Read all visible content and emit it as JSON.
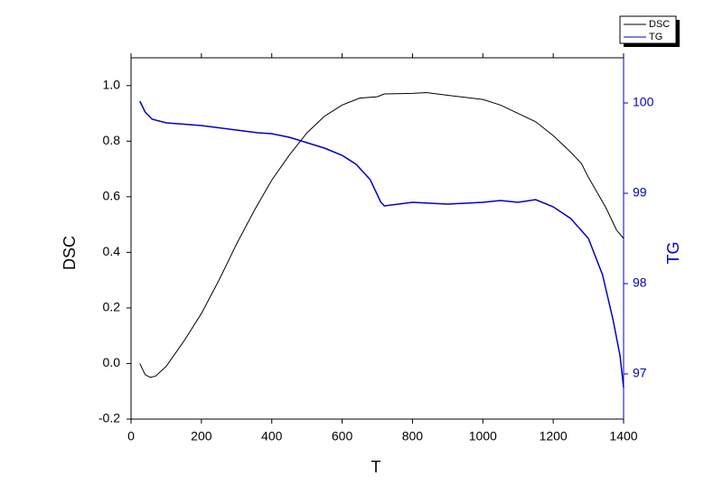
{
  "chart_data": {
    "type": "line",
    "xlabel": "T",
    "ylabel": "DSC",
    "y2label": "TG",
    "xlim": [
      0,
      1400
    ],
    "xticks": [
      0,
      200,
      400,
      600,
      800,
      1000,
      1200,
      1400
    ],
    "ylim": [
      -0.2,
      1.1
    ],
    "yticks": [
      -0.2,
      {
        "value": 0,
        "label": "0.0"
      },
      0.2,
      0.4,
      0.6,
      0.8,
      {
        "value": 1,
        "label": "1.0"
      }
    ],
    "y2lim": [
      96.5,
      100.5
    ],
    "y2ticks": [
      97,
      98,
      99,
      100
    ],
    "legend": "top-right",
    "series": [
      {
        "name": "DSC",
        "color": "#000000",
        "x": [
          25,
          40,
          55,
          70,
          100,
          150,
          200,
          250,
          300,
          350,
          400,
          450,
          500,
          550,
          600,
          650,
          700,
          720,
          800,
          840,
          900,
          1000,
          1050,
          1100,
          1150,
          1200,
          1250,
          1280,
          1300,
          1350,
          1380,
          1400
        ],
        "values": [
          0.0,
          -0.04,
          -0.05,
          -0.045,
          -0.01,
          0.08,
          0.18,
          0.3,
          0.43,
          0.55,
          0.66,
          0.75,
          0.83,
          0.89,
          0.93,
          0.955,
          0.96,
          0.97,
          0.972,
          0.975,
          0.965,
          0.95,
          0.93,
          0.9,
          0.87,
          0.82,
          0.76,
          0.72,
          0.67,
          0.56,
          0.48,
          0.45
        ]
      },
      {
        "name": "TG",
        "color": "#0000cc",
        "axis": "y2",
        "x": [
          25,
          40,
          60,
          100,
          200,
          300,
          360,
          400,
          450,
          500,
          550,
          600,
          640,
          680,
          710,
          720,
          800,
          900,
          1000,
          1050,
          1100,
          1150,
          1200,
          1250,
          1300,
          1340,
          1370,
          1390,
          1400
        ],
        "values": [
          100.02,
          99.9,
          99.82,
          99.78,
          99.75,
          99.7,
          99.67,
          99.66,
          99.62,
          99.56,
          99.5,
          99.42,
          99.32,
          99.15,
          98.9,
          98.86,
          98.9,
          98.88,
          98.9,
          98.92,
          98.9,
          98.93,
          98.85,
          98.72,
          98.5,
          98.1,
          97.6,
          97.2,
          96.85
        ]
      }
    ]
  }
}
